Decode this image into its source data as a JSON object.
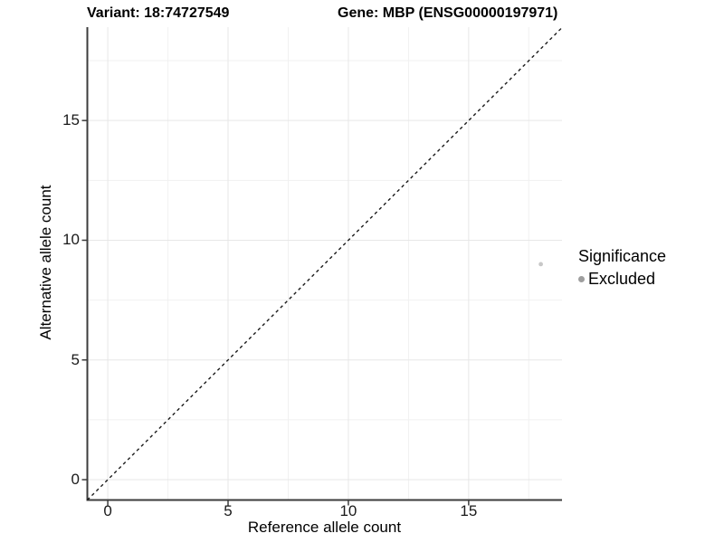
{
  "colors": {
    "background": "#ffffff",
    "axis_line": "#3c3c3c",
    "tick_mark": "#3c3c3c",
    "grid_major": "#e7e7e7",
    "grid_minor": "#f1f1f1",
    "dashed_line": "#1a1a1a",
    "point": "#c8c8c8",
    "legend_key": "#9e9e9e",
    "text": "#000000"
  },
  "chart_data": {
    "type": "scatter",
    "title_left": "Variant: 18:74727549",
    "title_right": "Gene: MBP (ENSG00000197971)",
    "xlabel": "Reference allele count",
    "ylabel": "Alternative allele count",
    "xlim": [
      -0.85,
      18.88
    ],
    "ylim": [
      -0.85,
      18.9
    ],
    "xticks": [
      0,
      5,
      10,
      15
    ],
    "yticks": [
      0,
      5,
      10,
      15
    ],
    "xticks_minor": [
      2.5,
      7.5,
      12.5,
      17.5
    ],
    "yticks_minor": [
      2.5,
      7.5,
      12.5,
      17.5
    ],
    "grid": true,
    "identity_line": {
      "style": "dashed",
      "from": -0.85,
      "to": 18.88
    },
    "series": [
      {
        "name": "Excluded",
        "color": "#c8c8c8",
        "point_radius": 2.4,
        "points": [
          {
            "x": 18,
            "y": 9
          }
        ]
      }
    ],
    "legend": {
      "title": "Significance",
      "position": "right",
      "items": [
        {
          "label": "Excluded",
          "color": "#9e9e9e"
        }
      ]
    }
  }
}
